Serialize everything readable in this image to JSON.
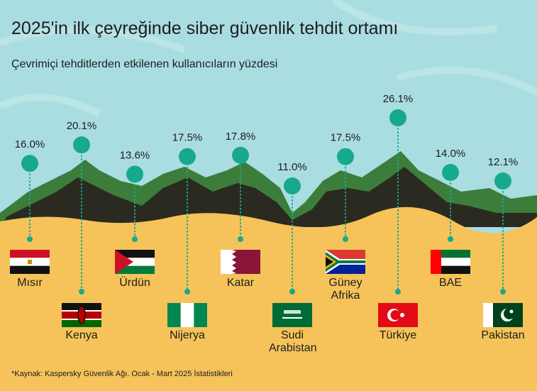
{
  "chart_data": {
    "type": "lollipop",
    "title": "2025'in ilk çeyreğinde siber güvenlik tehdit ortamı",
    "subtitle": "Çevrimiçi tehditlerden etkilenen kullanıcıların yüzdesi",
    "note": "*Kaynak: Kaspersky Güvenlik Ağı. Ocak - Mart 2025 İstatistikleri",
    "categories": [
      "Mısır",
      "Kenya",
      "Ürdün",
      "Nijerya",
      "Katar",
      "Sudi Arabistan",
      "Güney Afrika",
      "Türkiye",
      "BAE",
      "Pakistan"
    ],
    "values": [
      16.0,
      20.1,
      13.6,
      17.5,
      17.8,
      11.0,
      17.5,
      26.1,
      14.0,
      12.1
    ],
    "value_labels": [
      "16.0%",
      "20.1%",
      "13.6%",
      "17.5%",
      "17.8%",
      "11.0%",
      "17.5%",
      "26.1%",
      "14.0%",
      "12.1%"
    ],
    "color": "#17a98b"
  }
}
